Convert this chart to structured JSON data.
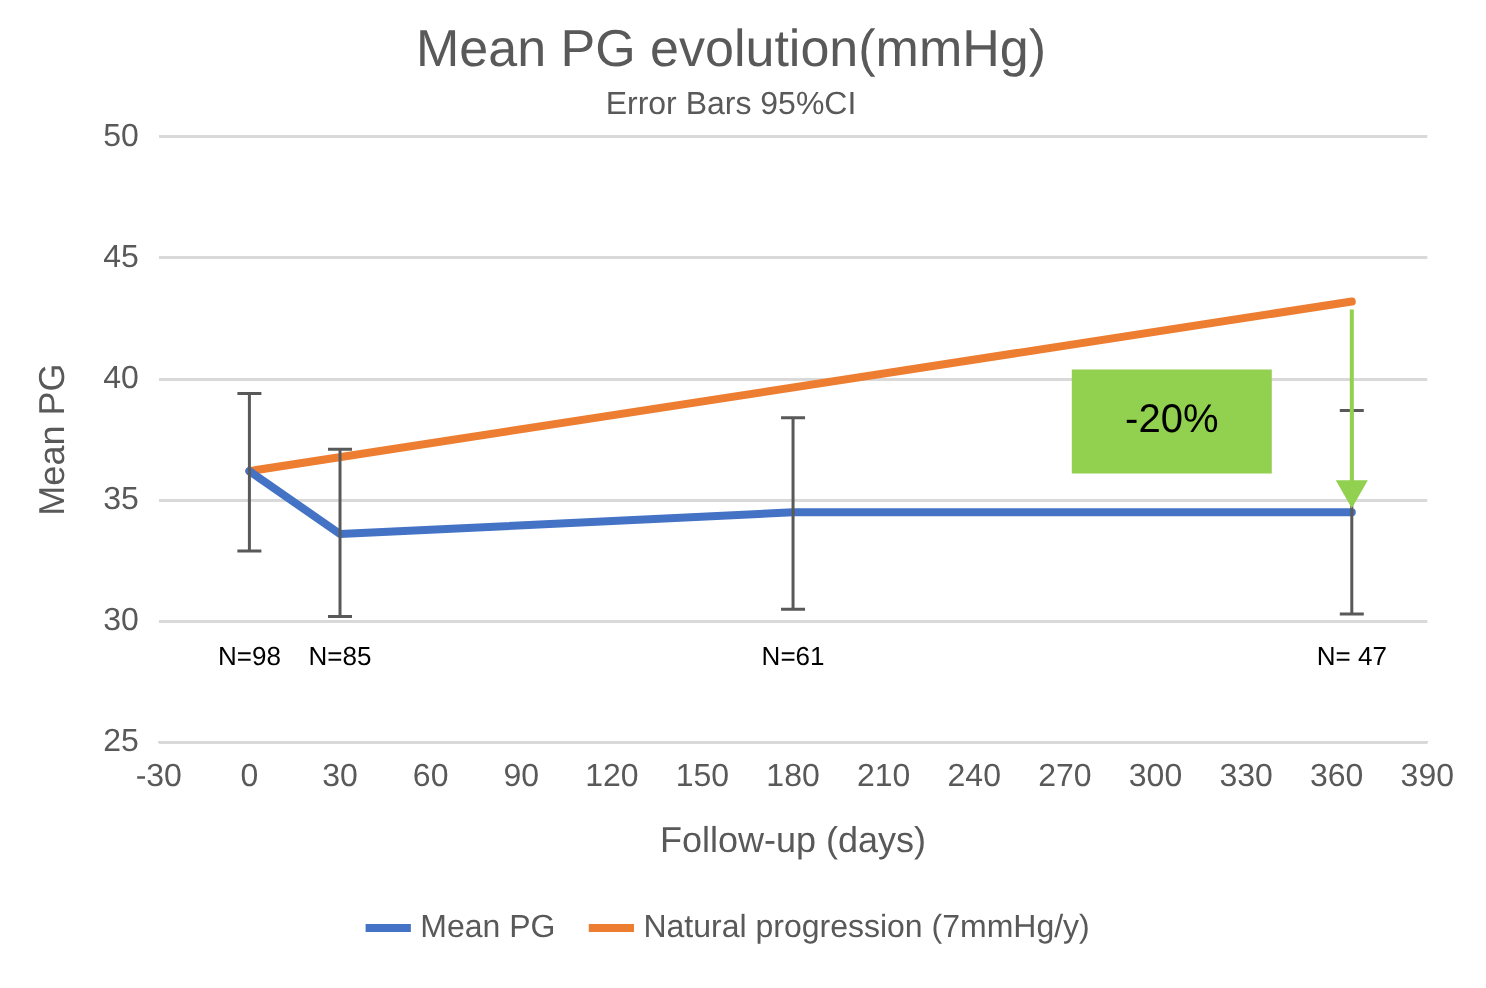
{
  "chart_data": {
    "type": "line",
    "title": "Mean PG evolution(mmHg)",
    "subtitle": "Error Bars 95%CI",
    "xlabel": "Follow-up (days)",
    "ylabel": "Mean PG",
    "xlim": [
      -30,
      390
    ],
    "xticks": [
      -30,
      0,
      30,
      60,
      90,
      120,
      150,
      180,
      210,
      240,
      270,
      300,
      330,
      360,
      390
    ],
    "ylim": [
      25,
      50
    ],
    "yticks": [
      25,
      30,
      35,
      40,
      45,
      50
    ],
    "grid": "y",
    "legend": "bottom",
    "marker": "none",
    "line_style": "solid",
    "series": [
      {
        "name": "Mean PG",
        "color": "#4472c4",
        "x": [
          0,
          30,
          180,
          365
        ],
        "values": [
          36.2,
          33.6,
          34.5,
          34.5
        ],
        "errors": [
          [
            32.9,
            39.4
          ],
          [
            30.2,
            37.1
          ],
          [
            30.5,
            38.4
          ],
          [
            30.3,
            38.7
          ]
        ]
      },
      {
        "name": "Natural progression (7mmHg/y)",
        "color": "#ed7d31",
        "x": [
          0,
          365
        ],
        "values": [
          36.2,
          43.2
        ]
      }
    ],
    "annotations": [
      "N=98",
      "N=85",
      "N=61",
      "N= 47",
      "-20%"
    ]
  }
}
